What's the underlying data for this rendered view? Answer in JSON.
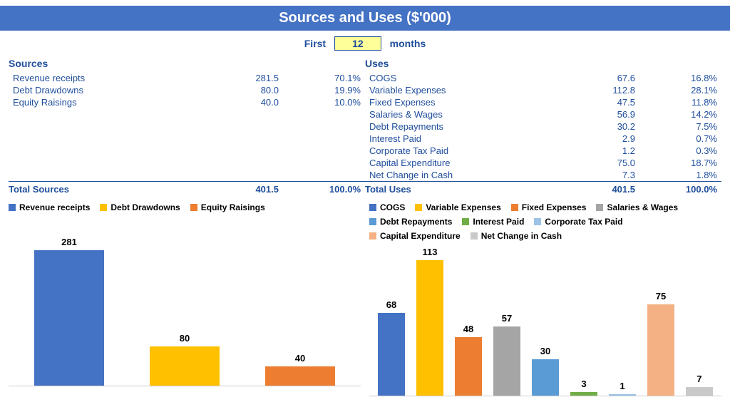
{
  "title": "Sources and Uses ($'000)",
  "period": {
    "pre": "First",
    "value": "12",
    "post": "months"
  },
  "colors": {
    "brand_blue": "#4472c4",
    "text_blue": "#1f4e9c",
    "highlight_bg": "#ffff99",
    "grid": "#cccccc",
    "black": "#000000"
  },
  "sources": {
    "header": "Sources",
    "items": [
      {
        "label": "Revenue receipts",
        "value": "281.5",
        "pct": "70.1%",
        "bar": 281,
        "color": "#4472c4"
      },
      {
        "label": "Debt Drawdowns",
        "value": "80.0",
        "pct": "19.9%",
        "bar": 80,
        "color": "#ffc000"
      },
      {
        "label": "Equity Raisings",
        "value": "40.0",
        "pct": "10.0%",
        "bar": 40,
        "color": "#ed7d31"
      }
    ],
    "total": {
      "label": "Total Sources",
      "value": "401.5",
      "pct": "100.0%"
    },
    "chart": {
      "ymax": 281,
      "bar_width_pct": 60
    }
  },
  "uses": {
    "header": "Uses",
    "items": [
      {
        "label": "COGS",
        "value": "67.6",
        "pct": "16.8%",
        "bar": 68,
        "color": "#4472c4"
      },
      {
        "label": "Variable Expenses",
        "value": "112.8",
        "pct": "28.1%",
        "bar": 113,
        "color": "#ffc000"
      },
      {
        "label": "Fixed Expenses",
        "value": "47.5",
        "pct": "11.8%",
        "bar": 48,
        "color": "#ed7d31"
      },
      {
        "label": "Salaries & Wages",
        "value": "56.9",
        "pct": "14.2%",
        "bar": 57,
        "color": "#a5a5a5"
      },
      {
        "label": "Debt Repayments",
        "value": "30.2",
        "pct": "7.5%",
        "bar": 30,
        "color": "#5b9bd5"
      },
      {
        "label": "Interest Paid",
        "value": "2.9",
        "pct": "0.7%",
        "bar": 3,
        "color": "#70ad47"
      },
      {
        "label": "Corporate Tax Paid",
        "value": "1.2",
        "pct": "0.3%",
        "bar": 1,
        "color": "#9dc3e6"
      },
      {
        "label": "Capital Expenditure",
        "value": "75.0",
        "pct": "18.7%",
        "bar": 75,
        "color": "#f4b183"
      },
      {
        "label": "Net Change in Cash",
        "value": "7.3",
        "pct": "1.8%",
        "bar": 7,
        "color": "#c9c9c9"
      }
    ],
    "total": {
      "label": "Total Uses",
      "value": "401.5",
      "pct": "100.0%"
    },
    "chart": {
      "ymax": 113,
      "bar_width_pct": 72
    }
  }
}
